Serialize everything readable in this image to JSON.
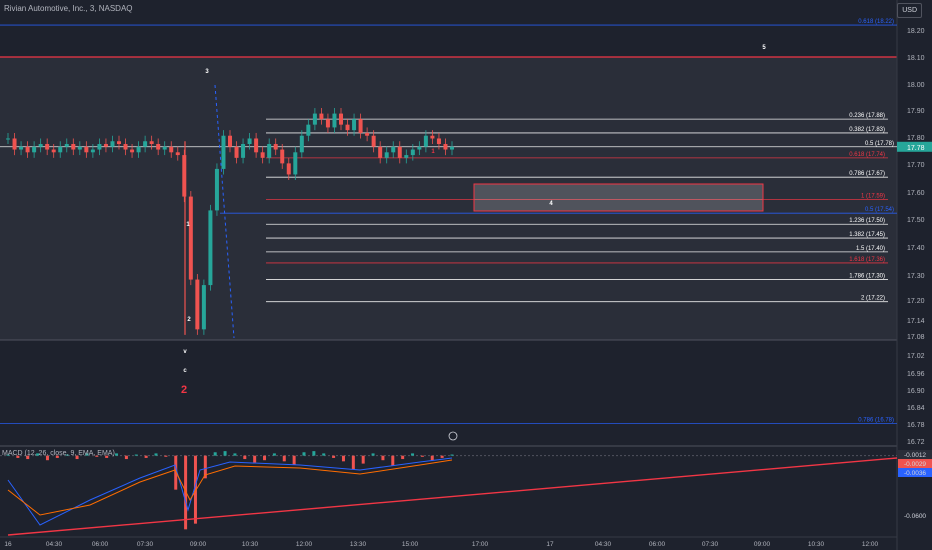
{
  "header": {
    "title": "Rivian Automotive, Inc., 3, NASDAQ",
    "currency": "USD"
  },
  "chart_data": [
    {
      "type": "candlestick",
      "title": "Rivian Automotive, Inc., 3, NASDAQ",
      "xlabel": "",
      "ylabel": "",
      "ylim": [
        16.72,
        18.26
      ],
      "price_ticks": [
        "18.20",
        "18.10",
        "18.00",
        "17.90",
        "17.80",
        "17.70",
        "17.60",
        "17.50",
        "17.40",
        "17.30",
        "17.20",
        "17.14",
        "17.08",
        "17.02",
        "16.96",
        "16.90",
        "16.84",
        "16.78",
        "16.72"
      ],
      "time_ticks": [
        "16",
        "04:30",
        "06:00",
        "07:30",
        "09:00",
        "10:30",
        "12:00",
        "13:30",
        "15:00",
        "17:00",
        "17",
        "04:30",
        "06:00",
        "07:30",
        "09:00",
        "10:30",
        "12:00"
      ],
      "last_price": "17.78",
      "close_series": [
        17.81,
        17.77,
        17.78,
        17.76,
        17.78,
        17.79,
        17.77,
        17.76,
        17.78,
        17.79,
        17.77,
        17.78,
        17.76,
        17.77,
        17.79,
        17.78,
        17.8,
        17.79,
        17.77,
        17.76,
        17.78,
        17.8,
        17.79,
        17.77,
        17.78,
        17.76,
        17.75,
        17.6,
        17.3,
        17.12,
        17.28,
        17.55,
        17.7,
        17.82,
        17.78,
        17.74,
        17.79,
        17.81,
        17.76,
        17.74,
        17.79,
        17.77,
        17.72,
        17.68,
        17.76,
        17.82,
        17.86,
        17.9,
        17.88,
        17.85,
        17.9,
        17.86,
        17.84,
        17.88,
        17.83,
        17.82,
        17.78,
        17.74,
        17.76,
        17.78,
        17.74,
        17.75,
        17.77,
        17.78,
        17.82,
        17.81,
        17.79,
        17.77,
        17.78
      ],
      "fib_levels": [
        {
          "label": "0.618 (18.22)",
          "price": 18.22,
          "color": "#2962ff"
        },
        {
          "label": "0.236 (17.88)",
          "price": 17.88,
          "color": "#ffffff"
        },
        {
          "label": "0.382 (17.83)",
          "price": 17.83,
          "color": "#ffffff"
        },
        {
          "label": "0.5 (17.78)",
          "price": 17.78,
          "color": "#ffffff"
        },
        {
          "label": "0.618 (17.74)",
          "price": 17.74,
          "color": "#f23645"
        },
        {
          "label": "0.786 (17.67)",
          "price": 17.67,
          "color": "#ffffff"
        },
        {
          "label": "1 (17.59)",
          "price": 17.59,
          "color": "#f23645"
        },
        {
          "label": "0.5 (17.54)",
          "price": 17.54,
          "color": "#2962ff"
        },
        {
          "label": "1.236 (17.50)",
          "price": 17.5,
          "color": "#ffffff"
        },
        {
          "label": "1.382 (17.45)",
          "price": 17.45,
          "color": "#ffffff"
        },
        {
          "label": "1.5 (17.40)",
          "price": 17.4,
          "color": "#ffffff"
        },
        {
          "label": "1.618 (17.36)",
          "price": 17.36,
          "color": "#f23645"
        },
        {
          "label": "1.786 (17.30)",
          "price": 17.3,
          "color": "#ffffff"
        },
        {
          "label": "2 (17.22)",
          "price": 17.22,
          "color": "#ffffff"
        },
        {
          "label": "0.786 (16.78)",
          "price": 16.78,
          "color": "#2962ff"
        }
      ],
      "wave_labels": [
        {
          "text": "5",
          "color": "#ffffff"
        },
        {
          "text": "3",
          "color": "#ffffff"
        },
        {
          "text": "1",
          "color": "#ffffff"
        },
        {
          "text": "2",
          "color": "#ffffff"
        },
        {
          "text": "4",
          "color": "#ffffff"
        },
        {
          "text": "1",
          "color": "#f23645"
        },
        {
          "text": "v",
          "color": "#ffffff"
        },
        {
          "text": "c",
          "color": "#ffffff"
        },
        {
          "text": "2",
          "color": "#f23645"
        }
      ]
    },
    {
      "type": "bar",
      "title": "MACD (12, 26, close, 9, EMA, EMA)",
      "ylim": [
        -0.07,
        0.005
      ],
      "price_ticks": [
        "-0.0012",
        "-0.0029",
        "-0.0036",
        "-0.0600"
      ],
      "histogram": [
        0.001,
        -0.002,
        -0.003,
        0.002,
        -0.004,
        -0.002,
        0.001,
        -0.003,
        0.002,
        -0.001,
        -0.002,
        0.002,
        -0.003,
        0.001,
        -0.002,
        0.002,
        -0.001,
        -0.03,
        -0.065,
        -0.06,
        -0.02,
        0.003,
        0.004,
        0.002,
        -0.003,
        -0.006,
        -0.004,
        0.002,
        -0.005,
        -0.008,
        0.003,
        0.004,
        0.002,
        -0.002,
        -0.005,
        -0.012,
        -0.007,
        0.002,
        -0.004,
        -0.009,
        -0.003,
        0.002,
        -0.001,
        -0.004,
        -0.002,
        0.001
      ]
    }
  ]
}
